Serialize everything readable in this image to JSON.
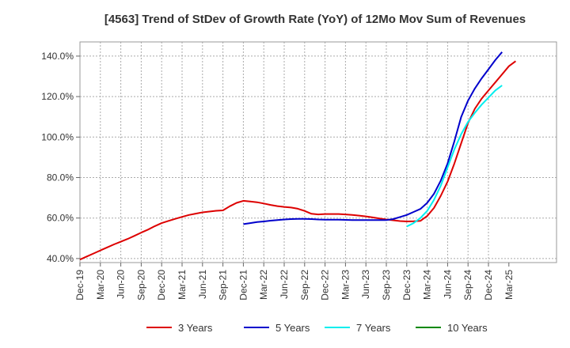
{
  "chart_data": {
    "type": "line",
    "title": "[4563]  Trend of StDev of Growth Rate (YoY) of 12Mo Mov Sum of Revenues",
    "xlabel": "",
    "ylabel": "",
    "ylim": [
      38,
      147
    ],
    "xlim": [
      "Dec-19",
      "Mar-25"
    ],
    "grid": true,
    "legend_position": "bottom",
    "y_ticks": [
      {
        "value": 40,
        "label": "40.0%"
      },
      {
        "value": 60,
        "label": "60.0%"
      },
      {
        "value": 80,
        "label": "80.0%"
      },
      {
        "value": 100,
        "label": "100.0%"
      },
      {
        "value": 120,
        "label": "120.0%"
      },
      {
        "value": 140,
        "label": "140.0%"
      }
    ],
    "x_ticks": [
      "Dec-19",
      "Mar-20",
      "Jun-20",
      "Sep-20",
      "Dec-20",
      "Mar-21",
      "Jun-21",
      "Sep-21",
      "Dec-21",
      "Mar-22",
      "Jun-22",
      "Sep-22",
      "Dec-22",
      "Mar-23",
      "Jun-23",
      "Sep-23",
      "Dec-23",
      "Mar-24",
      "Jun-24",
      "Sep-24",
      "Dec-24",
      "Mar-25"
    ],
    "series": [
      {
        "name": "3 Years",
        "color": "#dd0000",
        "start_month_index": 0,
        "values": [
          39.5,
          41.0,
          42.5,
          44.0,
          45.5,
          47.0,
          48.3,
          49.7,
          51.2,
          52.8,
          54.3,
          56.0,
          57.5,
          58.6,
          59.6,
          60.6,
          61.5,
          62.2,
          62.8,
          63.2,
          63.6,
          63.8,
          65.8,
          67.5,
          68.5,
          68.2,
          67.8,
          67.2,
          66.5,
          65.9,
          65.5,
          65.2,
          64.6,
          63.5,
          62.1,
          61.8,
          62.0,
          62.0,
          62.0,
          61.8,
          61.5,
          61.2,
          60.8,
          60.3,
          59.8,
          59.3,
          58.9,
          58.5,
          58.3,
          58.4,
          58.6,
          61.0,
          65.0,
          71.0,
          78.0,
          87.0,
          97.0,
          107.0,
          114.0,
          119.0,
          123.0,
          127.0,
          131.0,
          135.0,
          137.5
        ]
      },
      {
        "name": "5 Years",
        "color": "#0000cc",
        "start_month_index": 24,
        "values": [
          57.0,
          57.5,
          58.0,
          58.3,
          58.7,
          59.0,
          59.3,
          59.5,
          59.6,
          59.6,
          59.5,
          59.3,
          59.2,
          59.2,
          59.2,
          59.1,
          59.0,
          59.0,
          59.0,
          59.0,
          59.0,
          59.0,
          59.5,
          60.5,
          61.5,
          63.0,
          64.5,
          67.5,
          72.0,
          78.5,
          87.0,
          98.0,
          110.0,
          118.0,
          124.0,
          129.0,
          133.5,
          138.0,
          142.0
        ]
      },
      {
        "name": "7 Years",
        "color": "#00eeee",
        "start_month_index": 48,
        "values": [
          55.8,
          57.5,
          60.0,
          63.5,
          69.0,
          76.0,
          85.0,
          94.0,
          101.5,
          107.5,
          112.0,
          116.0,
          119.5,
          123.0,
          125.5
        ]
      },
      {
        "name": "10 Years",
        "color": "#008800",
        "start_month_index": 0,
        "values": []
      }
    ]
  }
}
